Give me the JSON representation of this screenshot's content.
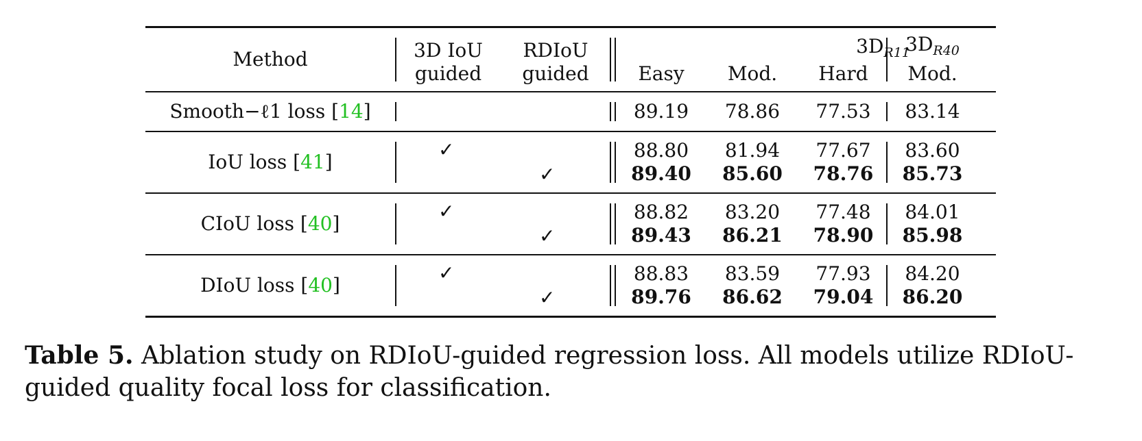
{
  "table": {
    "headers": {
      "method": "Method",
      "iou_guided": [
        "3D IoU",
        "guided"
      ],
      "rdiou_guided": [
        "RDIoU",
        "guided"
      ],
      "r11_group_base": "3D",
      "r11_group_sub": "R11",
      "easy": "Easy",
      "mod": "Mod.",
      "hard": "Hard",
      "r40_base": "3D",
      "r40_sub": "R40",
      "r40_mod": "Mod."
    },
    "check_symbol": "✓",
    "rows": [
      {
        "method": "Smooth−ℓ1 loss",
        "cite_open": "[",
        "cite_num": "14",
        "cite_close": "]",
        "results": [
          {
            "iou_guided": "",
            "rdiou_guided": "",
            "easy": "89.19",
            "mod": "78.86",
            "hard": "77.53",
            "r40_mod": "83.14",
            "bold": false
          }
        ]
      },
      {
        "method": "IoU loss",
        "cite_open": "[",
        "cite_num": "41",
        "cite_close": "]",
        "results": [
          {
            "iou_guided": "✓",
            "rdiou_guided": "",
            "easy": "88.80",
            "mod": "81.94",
            "hard": "77.67",
            "r40_mod": "83.60",
            "bold": false
          },
          {
            "iou_guided": "",
            "rdiou_guided": "✓",
            "easy": "89.40",
            "mod": "85.60",
            "hard": "78.76",
            "r40_mod": "85.73",
            "bold": true
          }
        ]
      },
      {
        "method": "CIoU loss",
        "cite_open": "[",
        "cite_num": "40",
        "cite_close": "]",
        "results": [
          {
            "iou_guided": "✓",
            "rdiou_guided": "",
            "easy": "88.82",
            "mod": "83.20",
            "hard": "77.48",
            "r40_mod": "84.01",
            "bold": false
          },
          {
            "iou_guided": "",
            "rdiou_guided": "✓",
            "easy": "89.43",
            "mod": "86.21",
            "hard": "78.90",
            "r40_mod": "85.98",
            "bold": true
          }
        ]
      },
      {
        "method": "DIoU loss",
        "cite_open": "[",
        "cite_num": "40",
        "cite_close": "]",
        "results": [
          {
            "iou_guided": "✓",
            "rdiou_guided": "",
            "easy": "88.83",
            "mod": "83.59",
            "hard": "77.93",
            "r40_mod": "84.20",
            "bold": false
          },
          {
            "iou_guided": "",
            "rdiou_guided": "✓",
            "easy": "89.76",
            "mod": "86.62",
            "hard": "79.04",
            "r40_mod": "86.20",
            "bold": true
          }
        ]
      }
    ]
  },
  "caption": {
    "label": "Table 5.",
    "text": " Ablation study on RDIoU-guided regression loss. All models utilize RDIoU-guided quality focal loss for classification."
  }
}
